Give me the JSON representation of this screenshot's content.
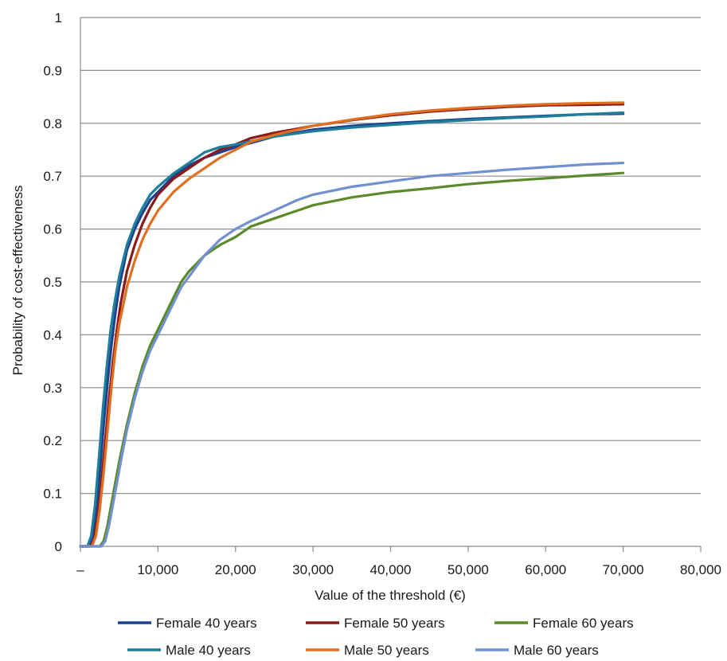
{
  "chart_data": {
    "type": "line",
    "title": "",
    "xlabel": "Value of the threshold (€)",
    "ylabel": "Probability of cost-effectiveness",
    "xlim": [
      0,
      80000
    ],
    "ylim": [
      0,
      1
    ],
    "x_ticks": [
      {
        "value": 0,
        "label": "–"
      },
      {
        "value": 10000,
        "label": "10,000"
      },
      {
        "value": 20000,
        "label": "20,000"
      },
      {
        "value": 30000,
        "label": "30,000"
      },
      {
        "value": 40000,
        "label": "40,000"
      },
      {
        "value": 50000,
        "label": "50,000"
      },
      {
        "value": 60000,
        "label": "60,000"
      },
      {
        "value": 70000,
        "label": "70,000"
      },
      {
        "value": 80000,
        "label": "80,000"
      }
    ],
    "y_ticks": [
      {
        "value": 0,
        "label": "0"
      },
      {
        "value": 0.1,
        "label": "0.1"
      },
      {
        "value": 0.2,
        "label": "0.2"
      },
      {
        "value": 0.3,
        "label": "0.3"
      },
      {
        "value": 0.4,
        "label": "0.4"
      },
      {
        "value": 0.5,
        "label": "0.5"
      },
      {
        "value": 0.6,
        "label": "0.6"
      },
      {
        "value": 0.7,
        "label": "0.7"
      },
      {
        "value": 0.8,
        "label": "0.8"
      },
      {
        "value": 0.9,
        "label": "0.9"
      },
      {
        "value": 1,
        "label": "1"
      }
    ],
    "grid": "horizontal",
    "legend_position": "bottom",
    "series": [
      {
        "name": "Female 40 years",
        "color": "#1f3f8f",
        "points": [
          [
            0,
            0
          ],
          [
            1000,
            0
          ],
          [
            1500,
            0.01
          ],
          [
            2000,
            0.06
          ],
          [
            2500,
            0.14
          ],
          [
            3000,
            0.23
          ],
          [
            3500,
            0.31
          ],
          [
            4000,
            0.38
          ],
          [
            4500,
            0.44
          ],
          [
            5000,
            0.49
          ],
          [
            6000,
            0.56
          ],
          [
            7000,
            0.6
          ],
          [
            8000,
            0.63
          ],
          [
            9000,
            0.655
          ],
          [
            10000,
            0.67
          ],
          [
            12000,
            0.7
          ],
          [
            14000,
            0.72
          ],
          [
            16000,
            0.735
          ],
          [
            18000,
            0.745
          ],
          [
            20000,
            0.755
          ],
          [
            25000,
            0.775
          ],
          [
            30000,
            0.788
          ],
          [
            35000,
            0.795
          ],
          [
            40000,
            0.8
          ],
          [
            45000,
            0.804
          ],
          [
            50000,
            0.808
          ],
          [
            55000,
            0.811
          ],
          [
            60000,
            0.814
          ],
          [
            65000,
            0.817
          ],
          [
            70000,
            0.818
          ]
        ]
      },
      {
        "name": "Female 50 years",
        "color": "#8b1a1a",
        "points": [
          [
            0,
            0
          ],
          [
            1200,
            0
          ],
          [
            1700,
            0.01
          ],
          [
            2200,
            0.05
          ],
          [
            2700,
            0.12
          ],
          [
            3200,
            0.2
          ],
          [
            3700,
            0.28
          ],
          [
            4200,
            0.35
          ],
          [
            4700,
            0.41
          ],
          [
            5200,
            0.46
          ],
          [
            6000,
            0.52
          ],
          [
            7000,
            0.57
          ],
          [
            8000,
            0.61
          ],
          [
            9000,
            0.64
          ],
          [
            10000,
            0.665
          ],
          [
            12000,
            0.695
          ],
          [
            14000,
            0.715
          ],
          [
            16000,
            0.735
          ],
          [
            18000,
            0.75
          ],
          [
            20000,
            0.76
          ],
          [
            22000,
            0.772
          ],
          [
            25000,
            0.782
          ],
          [
            30000,
            0.795
          ],
          [
            35000,
            0.806
          ],
          [
            40000,
            0.815
          ],
          [
            45000,
            0.822
          ],
          [
            50000,
            0.827
          ],
          [
            55000,
            0.831
          ],
          [
            60000,
            0.834
          ],
          [
            65000,
            0.835
          ],
          [
            70000,
            0.836
          ]
        ]
      },
      {
        "name": "Female 60 years",
        "color": "#5a8a2a",
        "points": [
          [
            0,
            0
          ],
          [
            2500,
            0
          ],
          [
            3000,
            0.01
          ],
          [
            3500,
            0.04
          ],
          [
            4000,
            0.08
          ],
          [
            4500,
            0.12
          ],
          [
            5000,
            0.16
          ],
          [
            6000,
            0.23
          ],
          [
            7000,
            0.29
          ],
          [
            8000,
            0.34
          ],
          [
            9000,
            0.38
          ],
          [
            10000,
            0.41
          ],
          [
            11000,
            0.44
          ],
          [
            12000,
            0.47
          ],
          [
            13000,
            0.5
          ],
          [
            14000,
            0.52
          ],
          [
            15000,
            0.535
          ],
          [
            16000,
            0.55
          ],
          [
            18000,
            0.57
          ],
          [
            20000,
            0.585
          ],
          [
            22000,
            0.605
          ],
          [
            25000,
            0.62
          ],
          [
            28000,
            0.635
          ],
          [
            30000,
            0.645
          ],
          [
            35000,
            0.66
          ],
          [
            40000,
            0.67
          ],
          [
            45000,
            0.677
          ],
          [
            50000,
            0.685
          ],
          [
            55000,
            0.691
          ],
          [
            60000,
            0.696
          ],
          [
            65000,
            0.701
          ],
          [
            70000,
            0.706
          ]
        ]
      },
      {
        "name": "Male 40 years",
        "color": "#1f7f9a",
        "points": [
          [
            0,
            0
          ],
          [
            900,
            0
          ],
          [
            1400,
            0.02
          ],
          [
            1900,
            0.08
          ],
          [
            2400,
            0.17
          ],
          [
            2900,
            0.26
          ],
          [
            3400,
            0.34
          ],
          [
            3900,
            0.41
          ],
          [
            4400,
            0.46
          ],
          [
            5000,
            0.51
          ],
          [
            6000,
            0.57
          ],
          [
            7000,
            0.61
          ],
          [
            8000,
            0.64
          ],
          [
            9000,
            0.665
          ],
          [
            10000,
            0.68
          ],
          [
            12000,
            0.705
          ],
          [
            14000,
            0.725
          ],
          [
            16000,
            0.745
          ],
          [
            18000,
            0.755
          ],
          [
            20000,
            0.76
          ],
          [
            25000,
            0.775
          ],
          [
            30000,
            0.785
          ],
          [
            35000,
            0.792
          ],
          [
            40000,
            0.797
          ],
          [
            45000,
            0.802
          ],
          [
            50000,
            0.806
          ],
          [
            55000,
            0.81
          ],
          [
            60000,
            0.813
          ],
          [
            65000,
            0.817
          ],
          [
            70000,
            0.82
          ]
        ]
      },
      {
        "name": "Male 50 years",
        "color": "#e07020",
        "points": [
          [
            0,
            0
          ],
          [
            1500,
            0
          ],
          [
            2000,
            0.02
          ],
          [
            2500,
            0.07
          ],
          [
            3000,
            0.14
          ],
          [
            3500,
            0.22
          ],
          [
            4000,
            0.3
          ],
          [
            4500,
            0.37
          ],
          [
            5000,
            0.42
          ],
          [
            6000,
            0.49
          ],
          [
            7000,
            0.54
          ],
          [
            8000,
            0.58
          ],
          [
            9000,
            0.61
          ],
          [
            10000,
            0.635
          ],
          [
            12000,
            0.67
          ],
          [
            14000,
            0.695
          ],
          [
            16000,
            0.715
          ],
          [
            18000,
            0.735
          ],
          [
            20000,
            0.75
          ],
          [
            22000,
            0.765
          ],
          [
            25000,
            0.778
          ],
          [
            30000,
            0.795
          ],
          [
            35000,
            0.807
          ],
          [
            40000,
            0.817
          ],
          [
            45000,
            0.824
          ],
          [
            50000,
            0.829
          ],
          [
            55000,
            0.833
          ],
          [
            60000,
            0.836
          ],
          [
            65000,
            0.838
          ],
          [
            70000,
            0.839
          ]
        ]
      },
      {
        "name": "Male 60 years",
        "color": "#7090d0",
        "points": [
          [
            0,
            0
          ],
          [
            2700,
            0
          ],
          [
            3200,
            0.01
          ],
          [
            3700,
            0.04
          ],
          [
            4200,
            0.08
          ],
          [
            4700,
            0.12
          ],
          [
            5200,
            0.16
          ],
          [
            6000,
            0.22
          ],
          [
            7000,
            0.28
          ],
          [
            8000,
            0.33
          ],
          [
            9000,
            0.37
          ],
          [
            10000,
            0.4
          ],
          [
            11000,
            0.43
          ],
          [
            12000,
            0.46
          ],
          [
            13000,
            0.49
          ],
          [
            14000,
            0.51
          ],
          [
            15000,
            0.53
          ],
          [
            16000,
            0.55
          ],
          [
            18000,
            0.58
          ],
          [
            20000,
            0.6
          ],
          [
            22000,
            0.615
          ],
          [
            25000,
            0.635
          ],
          [
            28000,
            0.655
          ],
          [
            30000,
            0.665
          ],
          [
            35000,
            0.68
          ],
          [
            40000,
            0.69
          ],
          [
            45000,
            0.7
          ],
          [
            50000,
            0.706
          ],
          [
            55000,
            0.712
          ],
          [
            60000,
            0.717
          ],
          [
            65000,
            0.722
          ],
          [
            70000,
            0.725
          ]
        ]
      }
    ]
  }
}
